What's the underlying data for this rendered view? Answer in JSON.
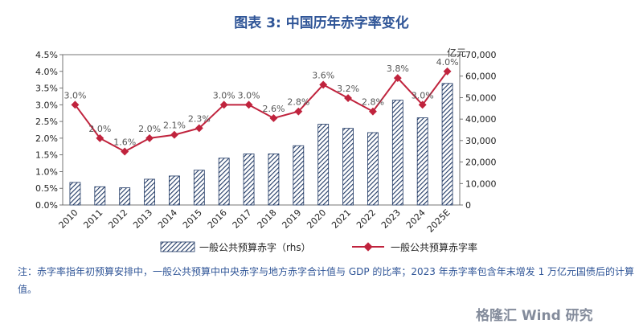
{
  "chart_data": {
    "type": "bar",
    "title": "图表 3:  中国历年赤字率变化",
    "categories": [
      "2010",
      "2011",
      "2012",
      "2013",
      "2014",
      "2015",
      "2016",
      "2017",
      "2018",
      "2019",
      "2020",
      "2021",
      "2022",
      "2023",
      "2024",
      "2025E"
    ],
    "series": [
      {
        "name": "一般公共预算赤字（rhs）",
        "type": "bar",
        "axis": "right",
        "values": [
          10500,
          8500,
          8000,
          12000,
          13500,
          16200,
          21800,
          23800,
          23800,
          27600,
          37600,
          35700,
          33700,
          48800,
          40600,
          56600
        ]
      },
      {
        "name": "一般公共预算赤字率",
        "type": "line",
        "axis": "left",
        "values": [
          3.0,
          2.0,
          1.6,
          2.0,
          2.1,
          2.3,
          3.0,
          3.0,
          2.6,
          2.8,
          3.6,
          3.2,
          2.8,
          3.8,
          3.0,
          4.0
        ],
        "labels": [
          "3.0%",
          "2.0%",
          "1.6%",
          "2.0%",
          "2.1%",
          "2.3%",
          "3.0%",
          "3.0%",
          "2.6%",
          "2.8%",
          "3.6%",
          "3.2%",
          "2.8%",
          "3.8%",
          "3.0%",
          "4.0%"
        ]
      }
    ],
    "left_axis": {
      "ylim": [
        0,
        4.5
      ],
      "ticks": [
        "0.0%",
        "0.5%",
        "1.0%",
        "1.5%",
        "2.0%",
        "2.5%",
        "3.0%",
        "3.5%",
        "4.0%",
        "4.5%"
      ]
    },
    "right_axis": {
      "ylim": [
        0,
        70000
      ],
      "unit": "亿元",
      "ticks": [
        "0",
        "10,000",
        "20,000",
        "30,000",
        "40,000",
        "50,000",
        "60,000",
        "70,000"
      ]
    },
    "legend": {
      "position": "bottom",
      "bar_label": "一般公共预算赤字（rhs）",
      "line_label": "一般公共预算赤字率"
    },
    "colors": {
      "bar": "#1f3864",
      "line": "#c0233d",
      "title": "#2f5597"
    }
  },
  "note": "注：赤字率指年初预算安排中，一般公共预算中中央赤字与地方赤字合计值与 GDP 的比率；2023 年赤字率包含年末增发 1 万亿元国债后的计算值。",
  "watermark": "格隆汇 Wind 研究"
}
